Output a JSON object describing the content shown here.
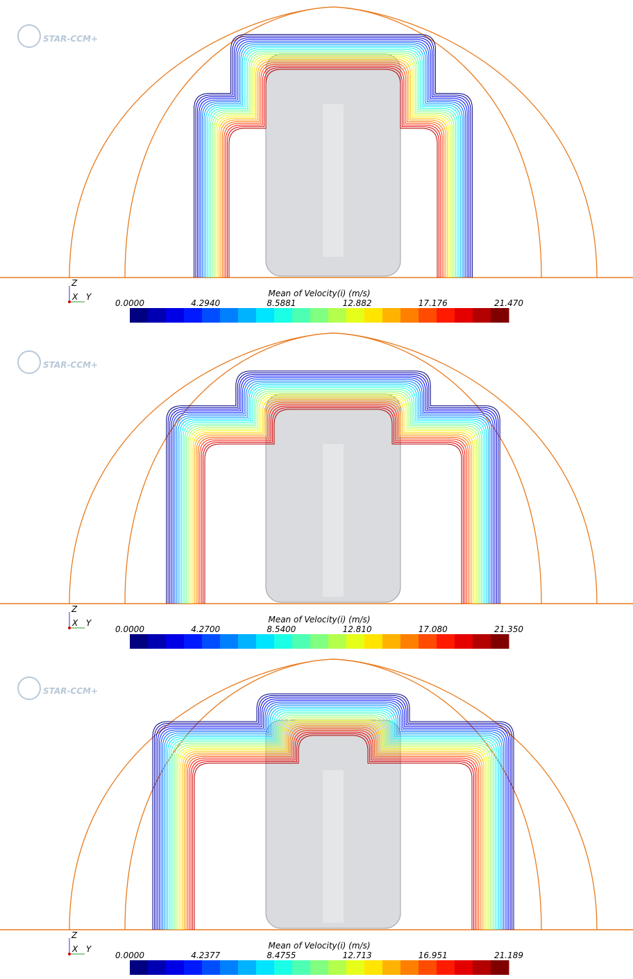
{
  "panels": [
    {
      "logo": "STAR-CCM+",
      "axes": {
        "z": "Z",
        "x": "X",
        "y": "Y"
      },
      "colorbar": {
        "title": "Mean of Velocity(i) (m/s)",
        "ticks": [
          "0.0000",
          "4.2940",
          "8.5881",
          "12.882",
          "17.176",
          "21.470"
        ]
      }
    },
    {
      "logo": "STAR-CCM+",
      "axes": {
        "z": "Z",
        "x": "X",
        "y": "Y"
      },
      "colorbar": {
        "title": "Mean of Velocity(i) (m/s)",
        "ticks": [
          "0.0000",
          "4.2700",
          "8.5400",
          "12.810",
          "17.080",
          "21.350"
        ]
      }
    },
    {
      "logo": "STAR-CCM+",
      "axes": {
        "z": "Z",
        "x": "X",
        "y": "Y"
      },
      "colorbar": {
        "title": "Mean of Velocity(i) (m/s)",
        "ticks": [
          "0.0000",
          "4.2377",
          "8.4755",
          "12.713",
          "16.951",
          "21.189"
        ]
      }
    }
  ]
}
